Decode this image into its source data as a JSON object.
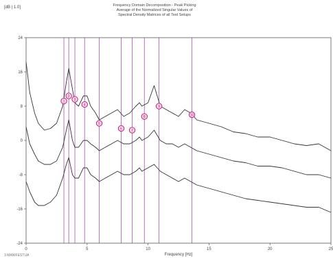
{
  "header": {
    "left_label": "[dB | 1.0]",
    "title_lines": [
      "Frequency Domain Decomposition - Peak Picking",
      "Average of the Normalized Singular Values of",
      "Spectral Density Matrices of all Test Setups"
    ]
  },
  "footer": {
    "label": "3 MANIFESTUA"
  },
  "chart_data": {
    "type": "line",
    "title": "Frequency Domain Decomposition - Peak Picking",
    "xlabel": "Frequency [Hz]",
    "ylabel": "[dB | 1.0]",
    "xlim": [
      0,
      25
    ],
    "ylim": [
      -20,
      40
    ],
    "x_ticks": [
      0,
      5,
      10,
      15,
      20,
      25
    ],
    "y_ticks": [
      {
        "value": 40,
        "label": "24"
      },
      {
        "value": 30,
        "label": "16"
      },
      {
        "value": 20,
        "label": "8"
      },
      {
        "value": 10,
        "label": "0"
      },
      {
        "value": 0,
        "label": "-8"
      },
      {
        "value": -10,
        "label": "-16"
      },
      {
        "value": -20,
        "label": "-24"
      }
    ],
    "grid": false,
    "series": [
      {
        "x": [
          0,
          0.3,
          0.7,
          1,
          1.5,
          2,
          2.5,
          3,
          3.3,
          3.5,
          3.8,
          4,
          4.3,
          4.7,
          5,
          5.3,
          5.7,
          6,
          6.5,
          7,
          7.5,
          8,
          8.5,
          9,
          9.3,
          9.5,
          10,
          10.5,
          11,
          11.5,
          12,
          12.5,
          13,
          13.5,
          14,
          15,
          16,
          17,
          18,
          19,
          20,
          21,
          22,
          23,
          24,
          25
        ],
        "y": [
          33,
          24,
          18,
          15,
          13,
          13.5,
          15,
          20,
          27,
          31,
          25,
          21,
          20,
          23,
          23,
          20,
          18,
          16,
          17,
          18,
          19,
          17,
          18,
          20,
          21,
          20,
          21,
          26,
          20,
          19,
          18,
          17,
          19,
          18,
          16,
          15,
          14,
          12.5,
          12,
          11,
          11,
          10,
          9,
          8.5,
          9,
          7
        ]
      },
      {
        "x": [
          0,
          0.3,
          0.7,
          1,
          1.5,
          2,
          2.5,
          3,
          3.3,
          3.5,
          3.8,
          4,
          4.3,
          4.7,
          5,
          5.3,
          5.7,
          6,
          6.5,
          7,
          7.5,
          8,
          8.5,
          9,
          9.3,
          9.5,
          10,
          10.5,
          11,
          11.5,
          12,
          12.5,
          13,
          13.5,
          14,
          15,
          16,
          17,
          18,
          19,
          20,
          21,
          22,
          23,
          24,
          25
        ],
        "y": [
          14,
          9,
          6,
          4,
          3,
          3,
          4,
          8,
          13,
          16,
          10,
          8,
          8,
          10,
          10,
          9,
          8,
          7,
          8,
          9,
          10,
          9,
          9,
          10,
          11,
          10,
          11,
          13,
          10,
          9,
          9,
          8,
          9,
          8,
          7,
          6,
          5,
          4,
          3.5,
          2.5,
          2.5,
          2,
          1,
          0,
          0,
          -1
        ]
      },
      {
        "x": [
          0,
          0.3,
          0.7,
          1,
          1.5,
          2,
          2.5,
          3,
          3.3,
          3.5,
          3.8,
          4,
          4.3,
          4.7,
          5,
          5.3,
          5.7,
          6,
          6.5,
          7,
          7.5,
          8,
          8.5,
          9,
          9.3,
          9.5,
          10,
          10.5,
          11,
          11.5,
          12,
          12.5,
          13,
          13.5,
          14,
          15,
          16,
          17,
          18,
          19,
          20,
          21,
          22,
          23,
          24,
          25
        ],
        "y": [
          -2,
          -5,
          -8,
          -9,
          -9,
          -8,
          -6,
          -1,
          3,
          5,
          0,
          -1,
          -1,
          2,
          2,
          0,
          -1,
          -2,
          -1,
          0,
          1,
          0,
          0,
          1,
          2,
          1,
          2,
          3,
          1,
          0,
          -1,
          -2,
          -1,
          -2,
          -3,
          -4,
          -5,
          -6,
          -7,
          -7.5,
          -8,
          -8.5,
          -9,
          -9.5,
          -9.5,
          -11
        ]
      }
    ],
    "markers": [
      {
        "x": 3.1,
        "y": 21.5,
        "label": "1"
      },
      {
        "x": 3.5,
        "y": 23,
        "label": "2"
      },
      {
        "x": 4.0,
        "y": 22,
        "label": "3"
      },
      {
        "x": 4.8,
        "y": 20.5,
        "label": "4"
      },
      {
        "x": 6.0,
        "y": 15,
        "label": "5"
      },
      {
        "x": 7.8,
        "y": 13.5,
        "label": "6"
      },
      {
        "x": 8.7,
        "y": 13,
        "label": "7"
      },
      {
        "x": 9.7,
        "y": 17,
        "label": "8"
      },
      {
        "x": 10.9,
        "y": 20,
        "label": "9"
      },
      {
        "x": 13.6,
        "y": 17.5,
        "label": "10"
      }
    ],
    "colors": {
      "curve": "#333333",
      "marker_line": "#9b3fa0",
      "marker_circle": "#c01070"
    }
  }
}
